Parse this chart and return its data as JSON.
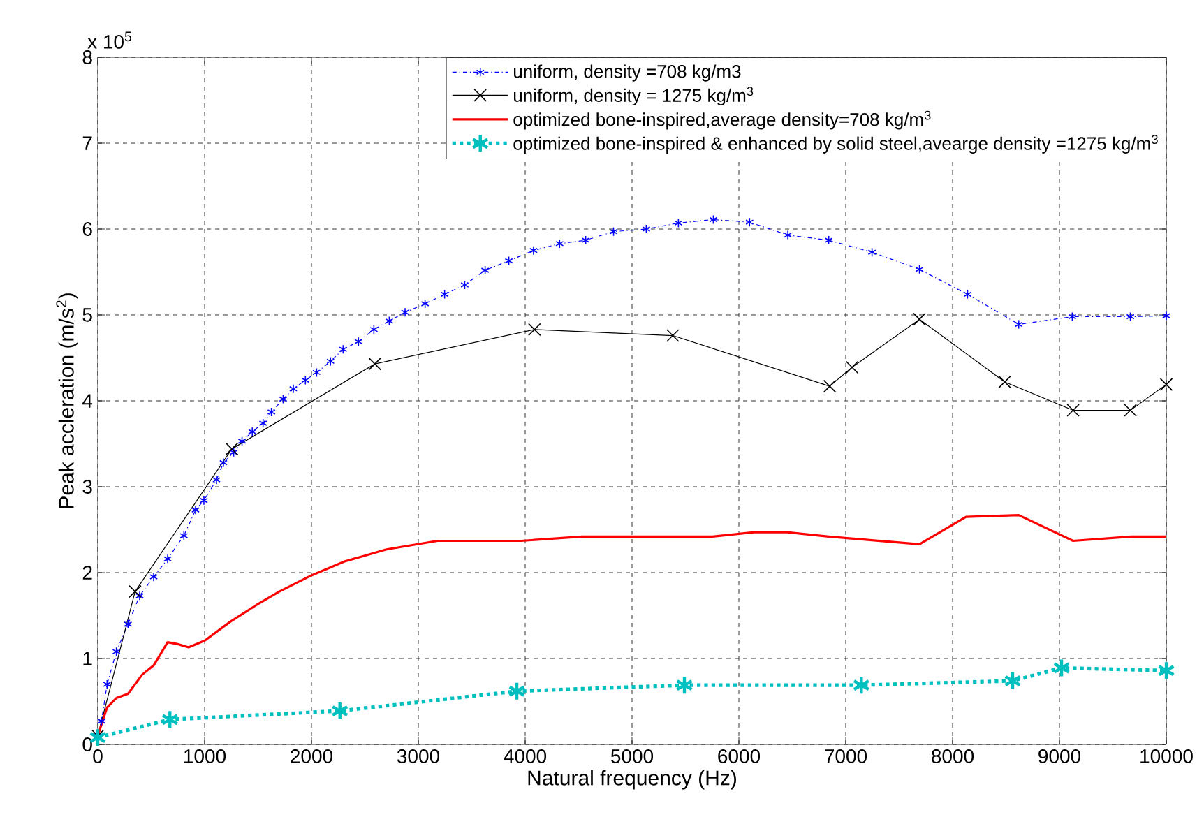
{
  "chart_data": {
    "type": "line",
    "xlabel": "Natural frequency (Hz)",
    "ylabel": "Peak accleration (m/s$^{2}$)",
    "annotations": [
      "x 10$^{5}$"
    ],
    "xlim": [
      0,
      10000
    ],
    "xticks": [
      0,
      1000,
      2000,
      3000,
      4000,
      5000,
      6000,
      7000,
      8000,
      9000,
      10000
    ],
    "ylim": [
      0,
      8
    ],
    "yticks": [
      0,
      1,
      2,
      3,
      4,
      5,
      6,
      7,
      8
    ],
    "grid": true,
    "legend": "top right",
    "series": [
      {
        "name": "uniform, density =708 kg/m3",
        "color": "#0000ff",
        "marker": "cross",
        "line_style": "dashdot",
        "x": [
          0,
          35,
          87,
          174,
          283,
          392,
          523,
          654,
          806,
          915,
          993,
          1111,
          1176,
          1272,
          1350,
          1446,
          1547,
          1625,
          1735,
          1830,
          1943,
          2048,
          2178,
          2296,
          2440,
          2584,
          2728,
          2876,
          3063,
          3246,
          3434,
          3625,
          3847,
          4078,
          4322,
          4566,
          4827,
          5133,
          5434,
          5761,
          6100,
          6458,
          6841,
          7246,
          7690,
          8140,
          8619,
          9120,
          9664,
          10000
        ],
        "values": [
          0.1,
          0.27,
          0.7,
          1.08,
          1.4,
          1.73,
          1.95,
          2.16,
          2.43,
          2.73,
          2.84,
          3.08,
          3.28,
          3.4,
          3.53,
          3.64,
          3.74,
          3.87,
          4.02,
          4.14,
          4.24,
          4.33,
          4.46,
          4.6,
          4.69,
          4.83,
          4.93,
          5.03,
          5.13,
          5.24,
          5.35,
          5.52,
          5.63,
          5.75,
          5.83,
          5.87,
          5.97,
          6.0,
          6.07,
          6.11,
          6.08,
          5.93,
          5.87,
          5.73,
          5.53,
          5.24,
          4.89,
          4.98,
          4.98,
          4.99
        ]
      },
      {
        "name": "uniform, density = 1275 kg/m$^{3}$",
        "color": "#000000",
        "marker": "cross",
        "line_style": "solid",
        "x": [
          0,
          349,
          1255,
          2593,
          4087,
          5381,
          6850,
          7059,
          7690,
          8488,
          9128,
          9664,
          10000
        ],
        "values": [
          0.1,
          1.78,
          3.44,
          4.43,
          4.83,
          4.76,
          4.17,
          4.39,
          4.95,
          4.22,
          3.89,
          3.89,
          4.19
        ]
      },
      {
        "name": "optimized bone-inspired,average density=708 kg/m$^{3}$",
        "color": "#ff0000",
        "marker": "none",
        "line_style": "solid",
        "x": [
          0,
          87,
          174,
          283,
          414,
          523,
          654,
          741,
          850,
          1002,
          1242,
          1481,
          1699,
          2004,
          2309,
          2702,
          3180,
          3965,
          4532,
          5420,
          5752,
          6144,
          6449,
          6841,
          7690,
          8126,
          8619,
          9128,
          9673,
          10000
        ],
        "values": [
          0.1,
          0.43,
          0.54,
          0.59,
          0.81,
          0.92,
          1.19,
          1.17,
          1.13,
          1.21,
          1.43,
          1.62,
          1.78,
          1.97,
          2.13,
          2.27,
          2.37,
          2.37,
          2.42,
          2.42,
          2.42,
          2.47,
          2.47,
          2.42,
          2.33,
          2.65,
          2.67,
          2.37,
          2.42,
          2.42
        ]
      },
      {
        "name": "optimized bone-inspired & enhanced by solid steel,avearge density =1275 kg/m$^{3}$",
        "color": "#00bfbf",
        "marker": "cross",
        "line_style": "dotted",
        "x": [
          0,
          675,
          2266,
          3922,
          5490,
          7146,
          8562,
          9020,
          10000
        ],
        "values": [
          0.08,
          0.29,
          0.39,
          0.62,
          0.69,
          0.69,
          0.74,
          0.89,
          0.86
        ]
      }
    ]
  }
}
